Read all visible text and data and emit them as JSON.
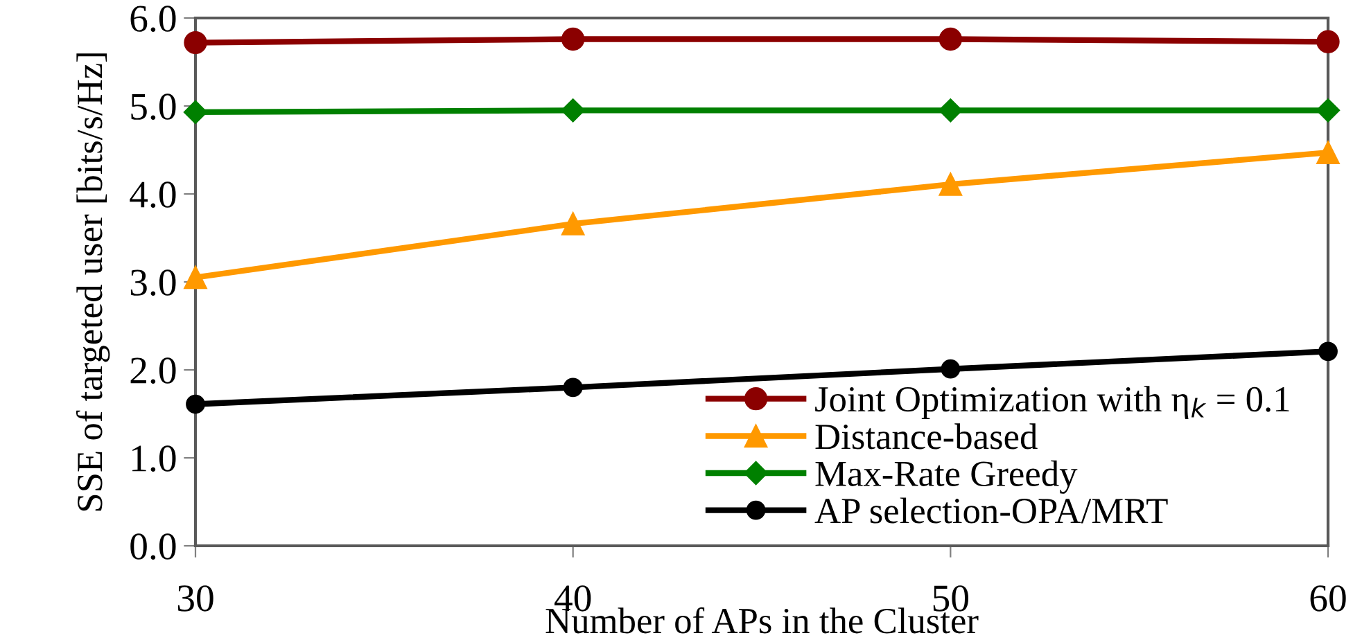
{
  "chart_data": {
    "type": "line",
    "xlabel": "Number of APs in the Cluster",
    "ylabel": "SSE of targeted user [bits/s/Hz]",
    "x": [
      30,
      40,
      50,
      60
    ],
    "series": [
      {
        "name": "Joint Optimization with η$_{k}$ = 0.1",
        "color": "#8b0000",
        "marker": "circle",
        "values": [
          5.72,
          5.76,
          5.76,
          5.73
        ]
      },
      {
        "name": "Distance-based",
        "color": "#ff9900",
        "marker": "triangle",
        "values": [
          3.05,
          3.66,
          4.11,
          4.47
        ]
      },
      {
        "name": "Max-Rate Greedy",
        "color": "#008000",
        "marker": "diamond",
        "values": [
          4.93,
          4.95,
          4.95,
          4.95
        ]
      },
      {
        "name": "AP selection-OPA/MRT",
        "color": "#000000",
        "marker": "circle",
        "values": [
          1.61,
          1.8,
          2.01,
          2.21
        ]
      }
    ],
    "xlim": [
      30,
      60
    ],
    "xticks": [
      30,
      40,
      50,
      60
    ],
    "ylim": [
      0,
      6
    ],
    "yticks": [
      {
        "value": 0,
        "label": "0.0"
      },
      {
        "value": 1,
        "label": "1.0"
      },
      {
        "value": 2,
        "label": "2.0"
      },
      {
        "value": 3,
        "label": "3.0"
      },
      {
        "value": 4,
        "label": "4.0"
      },
      {
        "value": 5,
        "label": "5.0"
      },
      {
        "value": 6,
        "label": "6.0"
      }
    ],
    "grid": false,
    "legend": "bottom right",
    "line_style": "solid"
  }
}
